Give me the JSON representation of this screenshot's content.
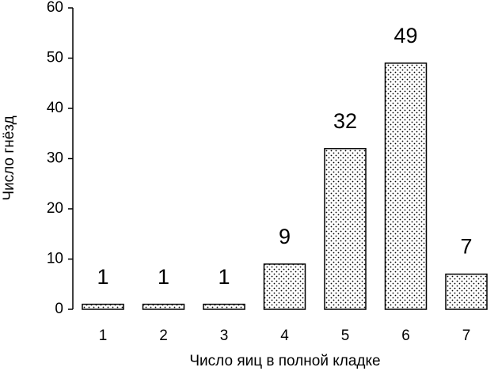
{
  "chart_data": {
    "type": "bar",
    "x_label": "Число яиц в полной кладке",
    "y_label": "Число гнёзд",
    "categories": [
      "1",
      "2",
      "3",
      "4",
      "5",
      "6",
      "7"
    ],
    "values": [
      1,
      1,
      1,
      9,
      32,
      49,
      7
    ],
    "color": "#000000",
    "ylim": [
      0,
      60
    ],
    "yticks": [
      0,
      10,
      20,
      30,
      40,
      50,
      60
    ],
    "data_labels": true
  }
}
